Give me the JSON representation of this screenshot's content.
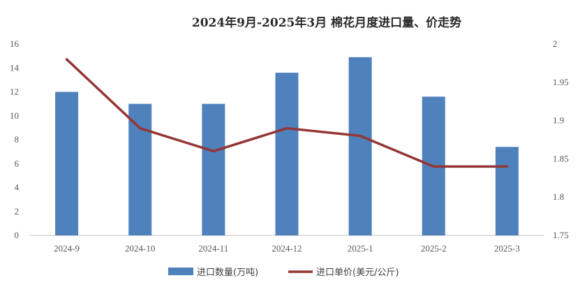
{
  "chart_data": {
    "type": "bar",
    "title": "2024年9月-2025年3月 棉花月度进口量、价走势",
    "categories": [
      "2024-9",
      "2024-10",
      "2024-11",
      "2024-12",
      "2025-1",
      "2025-2",
      "2025-3"
    ],
    "series": [
      {
        "name": "进口数量(万吨)",
        "type": "bar",
        "axis": "left",
        "color": "#4f81bd",
        "values": [
          12,
          11,
          11,
          13.6,
          14.9,
          11.6,
          7.4
        ]
      },
      {
        "name": "进口单价(美元/公斤)",
        "type": "line",
        "axis": "right",
        "color": "#943634",
        "values": [
          1.98,
          1.89,
          1.86,
          1.89,
          1.88,
          1.84,
          1.84
        ]
      }
    ],
    "y_left": {
      "min": 0,
      "max": 16,
      "ticks": [
        "0",
        "2",
        "4",
        "6",
        "8",
        "10",
        "12",
        "14",
        "16"
      ]
    },
    "y_right": {
      "min": 1.75,
      "max": 2,
      "ticks": [
        "1.75",
        "1.8",
        "1.85",
        "1.9",
        "1.95",
        "2"
      ]
    },
    "grid": false,
    "legend_position": "bottom"
  }
}
